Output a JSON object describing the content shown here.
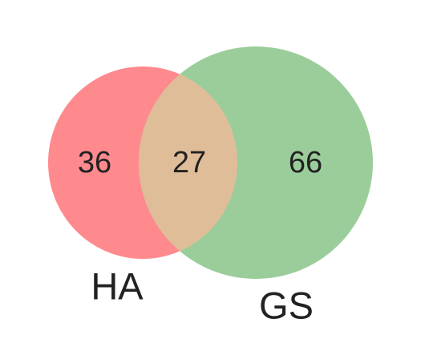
{
  "venn": {
    "sets": [
      {
        "label": "HA",
        "only_count": "36",
        "color": "#ff8a8e"
      },
      {
        "label": "GS",
        "only_count": "66",
        "color": "#9bcd9b"
      }
    ],
    "intersection_count": "27",
    "intersection_color": "#e0bd99"
  }
}
